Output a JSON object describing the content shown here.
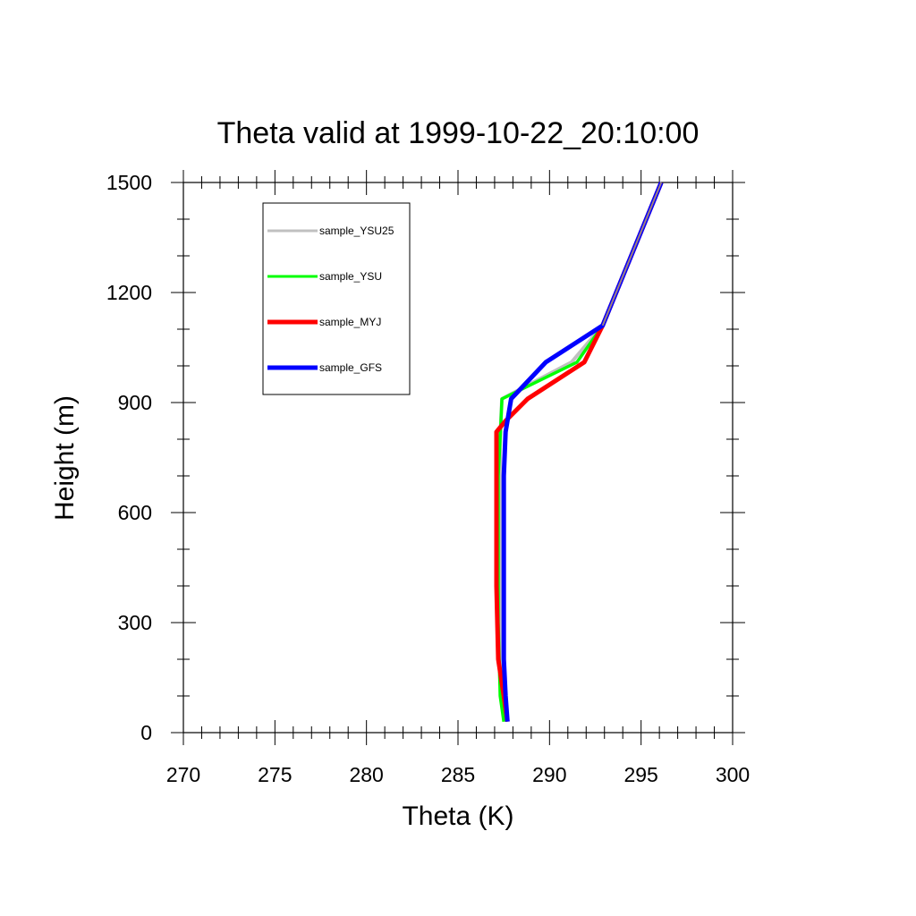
{
  "chart_data": {
    "type": "line",
    "title": "Theta valid at 1999-10-22_20:10:00",
    "xlabel": "Theta (K)",
    "ylabel": "Height (m)",
    "xlim": [
      270,
      300
    ],
    "ylim": [
      0,
      1500
    ],
    "xticks": [
      270,
      275,
      280,
      285,
      290,
      295,
      300
    ],
    "yticks": [
      0,
      300,
      600,
      900,
      1200,
      1500
    ],
    "xtick_labels": [
      "270",
      "275",
      "280",
      "285",
      "290",
      "295",
      "300"
    ],
    "ytick_labels": [
      "0",
      "300",
      "600",
      "900",
      "1200",
      "1500"
    ],
    "grid": false,
    "legend_position": "top-left",
    "series": [
      {
        "name": "sample_YSU25",
        "color": "#c0c0c0",
        "points": [
          [
            287.6,
            30
          ],
          [
            287.5,
            80
          ],
          [
            287.4,
            200
          ],
          [
            287.3,
            400
          ],
          [
            287.3,
            600
          ],
          [
            287.3,
            800
          ],
          [
            287.4,
            910
          ],
          [
            291.2,
            1010
          ],
          [
            292.9,
            1110
          ],
          [
            296.1,
            1500
          ]
        ]
      },
      {
        "name": "sample_YSU",
        "color": "#00ff00",
        "points": [
          [
            287.5,
            30
          ],
          [
            287.3,
            100
          ],
          [
            287.2,
            300
          ],
          [
            287.2,
            500
          ],
          [
            287.2,
            700
          ],
          [
            287.3,
            800
          ],
          [
            287.4,
            910
          ],
          [
            291.5,
            1010
          ],
          [
            292.9,
            1110
          ],
          [
            296.1,
            1500
          ]
        ]
      },
      {
        "name": "sample_MYJ",
        "color": "#ff0000",
        "points": [
          [
            287.7,
            30
          ],
          [
            287.5,
            100
          ],
          [
            287.2,
            200
          ],
          [
            287.1,
            400
          ],
          [
            287.1,
            600
          ],
          [
            287.1,
            700
          ],
          [
            287.1,
            820
          ],
          [
            287.6,
            850
          ],
          [
            288.8,
            910
          ],
          [
            291.9,
            1010
          ],
          [
            292.9,
            1110
          ],
          [
            296.1,
            1500
          ]
        ]
      },
      {
        "name": "sample_GFS",
        "color": "#0000ff",
        "points": [
          [
            287.7,
            30
          ],
          [
            287.6,
            100
          ],
          [
            287.5,
            200
          ],
          [
            287.5,
            400
          ],
          [
            287.5,
            600
          ],
          [
            287.5,
            700
          ],
          [
            287.6,
            820
          ],
          [
            287.9,
            910
          ],
          [
            289.8,
            1010
          ],
          [
            292.9,
            1110
          ],
          [
            296.1,
            1500
          ]
        ]
      }
    ]
  }
}
